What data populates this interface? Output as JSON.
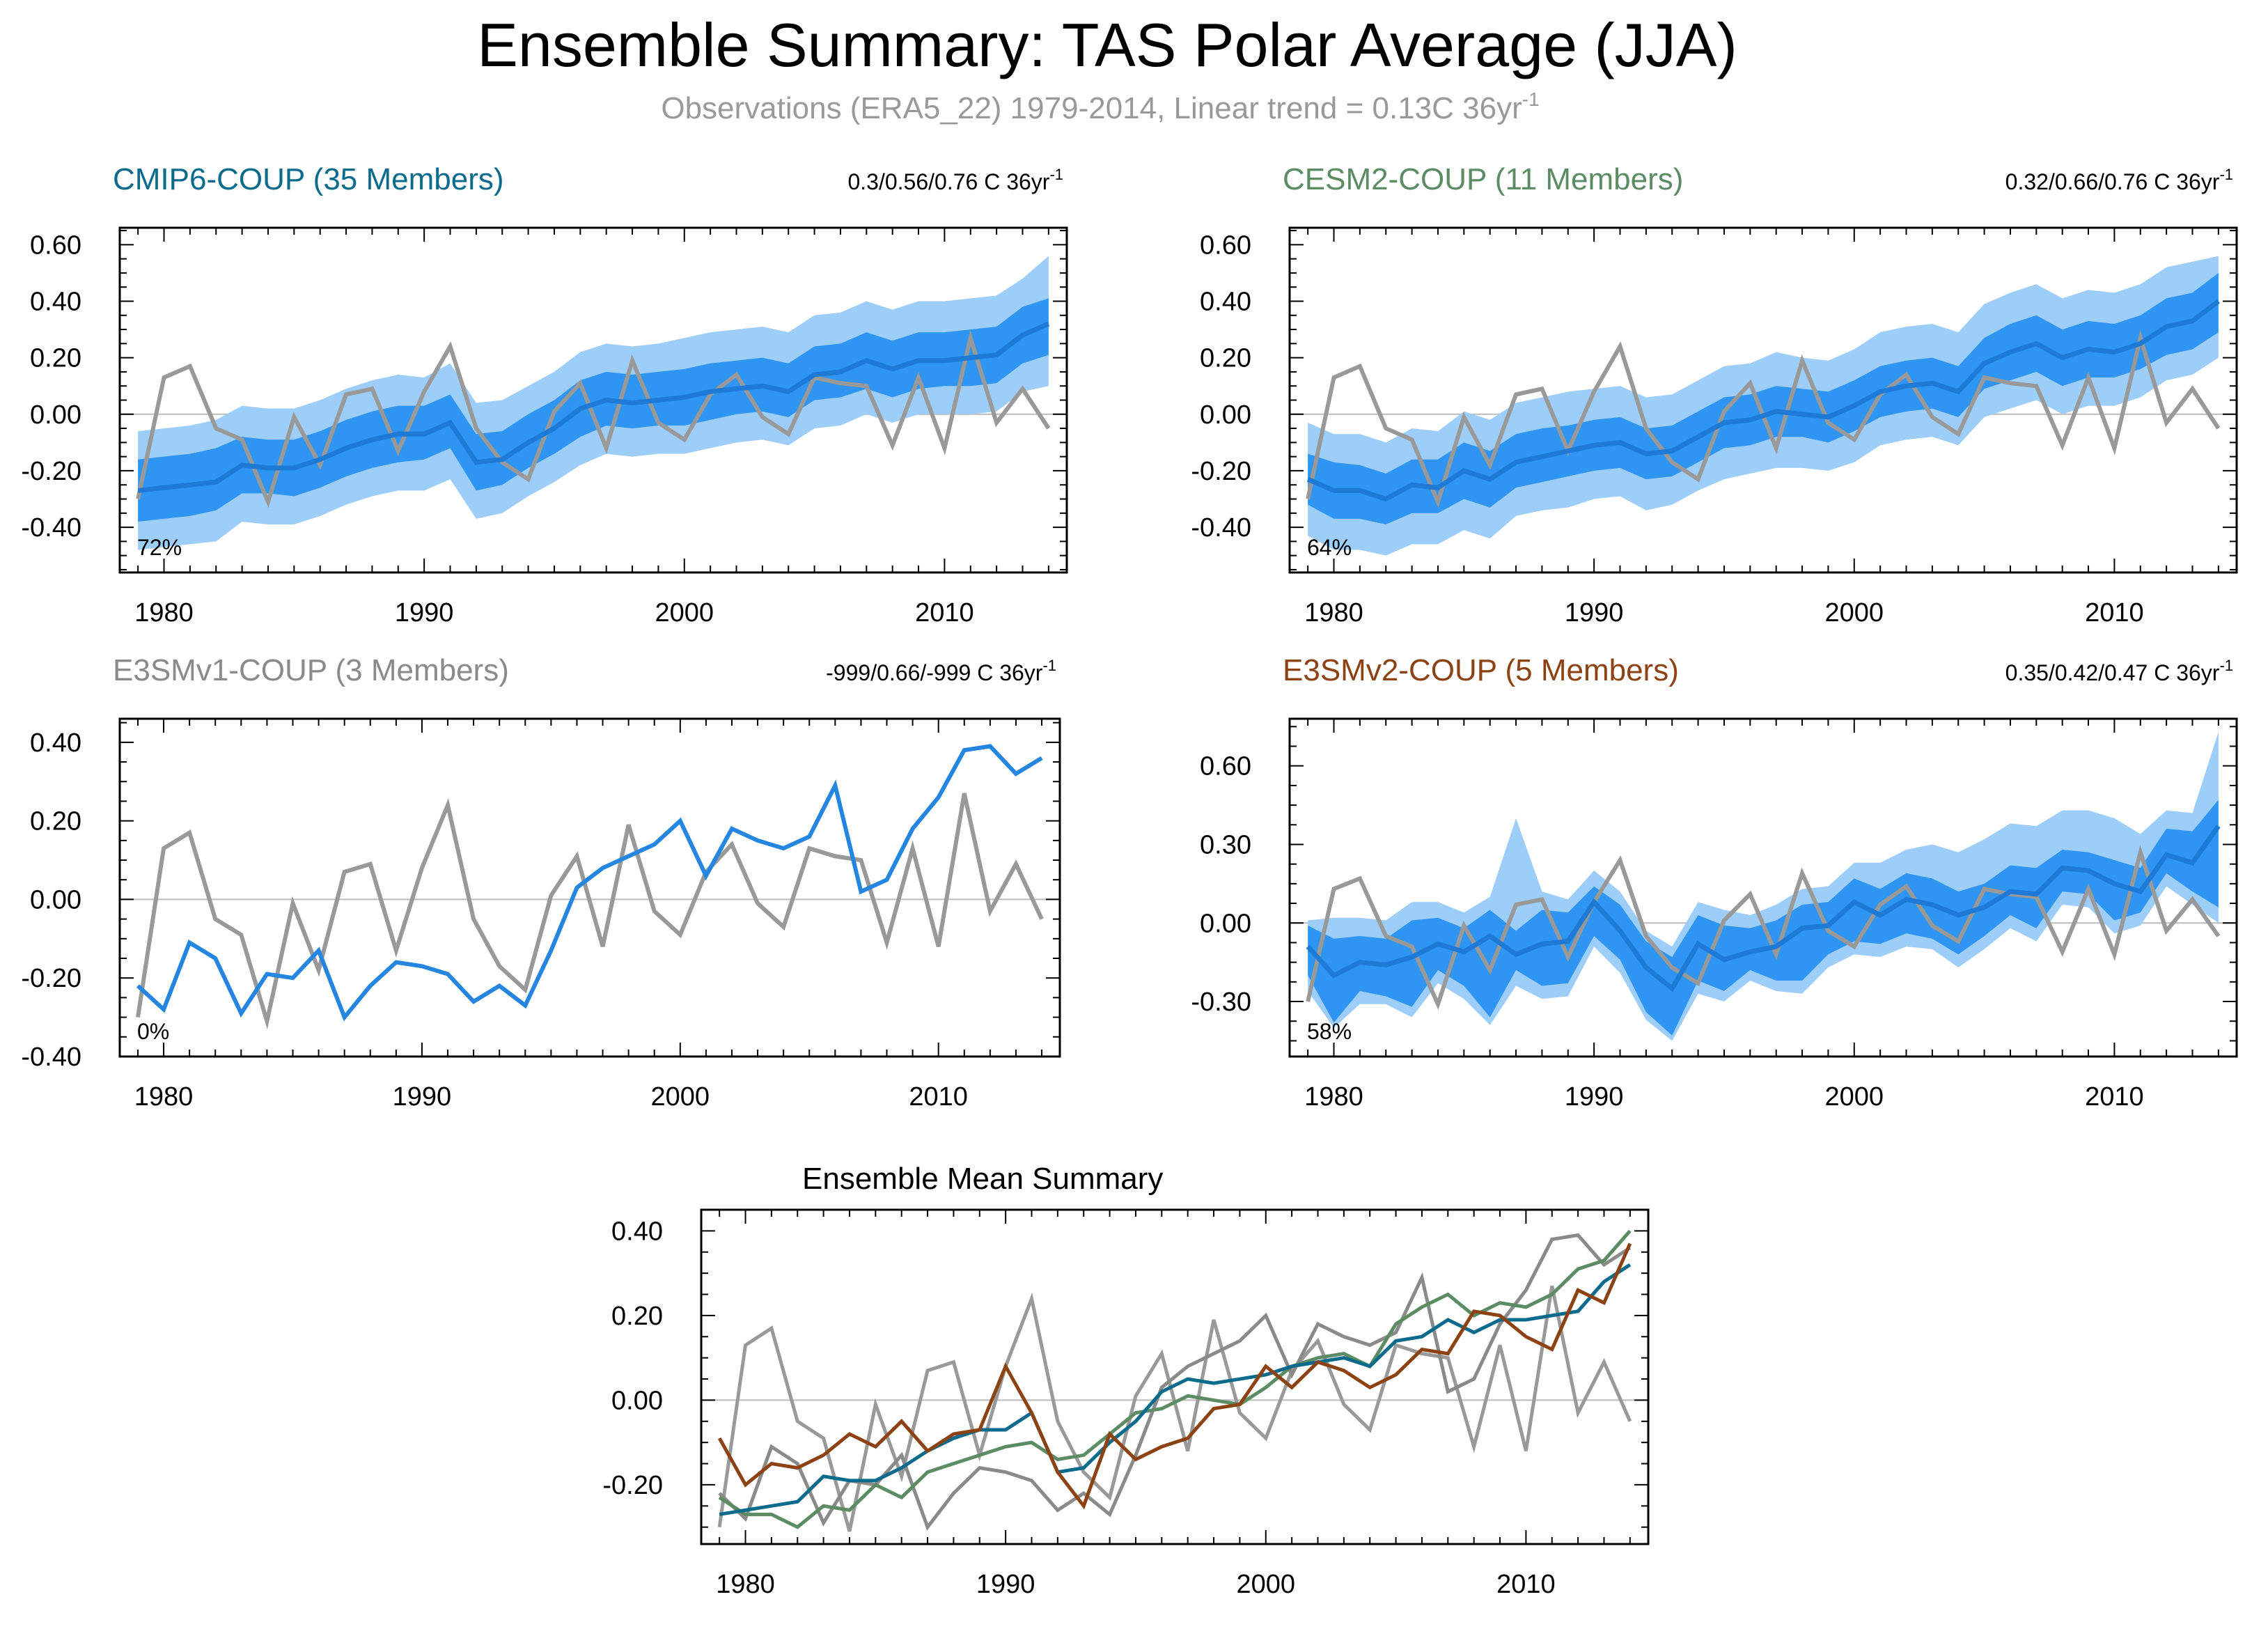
{
  "title": "Ensemble Summary: TAS Polar Average (JJA)",
  "subtitle": {
    "text": "Observations (ERA5_22) 1979-2014, Linear trend = 0.13C 36yr",
    "superscript": "-1"
  },
  "colors": {
    "obs": "#999999",
    "band_outer": "#9dcdf9",
    "band_inner": "#2e95f2",
    "mean_line": "#1d7bd7",
    "e3smv1_line": "#2486e1",
    "cmip6": "#0a6b8c",
    "cesm2": "#5b8c63",
    "e3smv1": "#8a8a8a",
    "e3smv2": "#8c4212"
  },
  "chart_data": [
    {
      "type": "line",
      "panel": "cmip6",
      "title": "CMIP6-COUP (35 Members)",
      "trend_text": "0.3/0.56/0.76 C 36yr",
      "trend_sup": "-1",
      "pct_label": "72%",
      "x_start": 1979,
      "xticks": [
        1980,
        1990,
        2000,
        2010
      ],
      "ylim": [
        -0.56,
        0.66
      ],
      "yticks": [
        -0.4,
        -0.2,
        0.0,
        0.2,
        0.4,
        0.6
      ],
      "ytick_labels": [
        "-0.40",
        "-0.20",
        "0.00",
        "0.20",
        "0.40",
        "0.60"
      ],
      "obs": [
        -0.3,
        0.13,
        0.17,
        -0.05,
        -0.09,
        -0.31,
        -0.01,
        -0.18,
        0.07,
        0.09,
        -0.13,
        0.08,
        0.24,
        -0.05,
        -0.17,
        -0.23,
        0.01,
        0.11,
        -0.12,
        0.19,
        -0.03,
        -0.09,
        0.07,
        0.14,
        -0.01,
        -0.07,
        0.13,
        0.11,
        0.1,
        -0.11,
        0.13,
        -0.12,
        0.27,
        -0.03,
        0.09,
        -0.05
      ],
      "mean": [
        -0.27,
        -0.26,
        -0.25,
        -0.24,
        -0.18,
        -0.19,
        -0.19,
        -0.16,
        -0.12,
        -0.09,
        -0.07,
        -0.07,
        -0.03,
        -0.17,
        -0.16,
        -0.1,
        -0.05,
        0.02,
        0.05,
        0.04,
        0.05,
        0.06,
        0.08,
        0.09,
        0.1,
        0.08,
        0.14,
        0.15,
        0.19,
        0.16,
        0.19,
        0.19,
        0.2,
        0.21,
        0.28,
        0.32
      ],
      "inner_low": [
        -0.38,
        -0.37,
        -0.36,
        -0.34,
        -0.28,
        -0.28,
        -0.29,
        -0.26,
        -0.22,
        -0.19,
        -0.17,
        -0.16,
        -0.12,
        -0.27,
        -0.25,
        -0.19,
        -0.14,
        -0.08,
        -0.04,
        -0.05,
        -0.04,
        -0.04,
        -0.02,
        0.0,
        0.01,
        -0.01,
        0.05,
        0.06,
        0.09,
        0.06,
        0.09,
        0.1,
        0.1,
        0.11,
        0.18,
        0.21
      ],
      "inner_high": [
        -0.16,
        -0.15,
        -0.14,
        -0.12,
        -0.08,
        -0.09,
        -0.09,
        -0.06,
        -0.02,
        0.01,
        0.03,
        0.03,
        0.07,
        -0.07,
        -0.06,
        0.0,
        0.05,
        0.12,
        0.15,
        0.14,
        0.15,
        0.16,
        0.18,
        0.19,
        0.2,
        0.18,
        0.24,
        0.25,
        0.29,
        0.26,
        0.29,
        0.29,
        0.3,
        0.31,
        0.38,
        0.41
      ],
      "outer_low": [
        -0.48,
        -0.47,
        -0.46,
        -0.45,
        -0.38,
        -0.39,
        -0.39,
        -0.36,
        -0.32,
        -0.29,
        -0.27,
        -0.27,
        -0.23,
        -0.37,
        -0.35,
        -0.29,
        -0.24,
        -0.18,
        -0.14,
        -0.15,
        -0.14,
        -0.14,
        -0.12,
        -0.1,
        -0.09,
        -0.11,
        -0.05,
        -0.04,
        0.0,
        -0.03,
        0.0,
        0.0,
        0.0,
        0.01,
        0.08,
        0.1
      ],
      "outer_high": [
        -0.06,
        -0.05,
        -0.04,
        -0.02,
        0.03,
        0.02,
        0.02,
        0.05,
        0.09,
        0.12,
        0.14,
        0.13,
        0.18,
        0.04,
        0.05,
        0.1,
        0.15,
        0.22,
        0.25,
        0.24,
        0.25,
        0.27,
        0.29,
        0.3,
        0.31,
        0.29,
        0.35,
        0.36,
        0.4,
        0.37,
        0.4,
        0.4,
        0.41,
        0.42,
        0.48,
        0.56
      ]
    },
    {
      "type": "line",
      "panel": "cesm2",
      "title": "CESM2-COUP (11 Members)",
      "trend_text": "0.32/0.66/0.76 C 36yr",
      "trend_sup": "-1",
      "pct_label": "64%",
      "x_start": 1979,
      "xticks": [
        1980,
        1990,
        2000,
        2010
      ],
      "ylim": [
        -0.56,
        0.66
      ],
      "yticks": [
        -0.4,
        -0.2,
        0.0,
        0.2,
        0.4,
        0.6
      ],
      "ytick_labels": [
        "-0.40",
        "-0.20",
        "0.00",
        "0.20",
        "0.40",
        "0.60"
      ],
      "obs": [
        -0.3,
        0.13,
        0.17,
        -0.05,
        -0.09,
        -0.31,
        -0.01,
        -0.18,
        0.07,
        0.09,
        -0.13,
        0.08,
        0.24,
        -0.05,
        -0.17,
        -0.23,
        0.01,
        0.11,
        -0.12,
        0.19,
        -0.03,
        -0.09,
        0.07,
        0.14,
        -0.01,
        -0.07,
        0.13,
        0.11,
        0.1,
        -0.11,
        0.13,
        -0.12,
        0.27,
        -0.03,
        0.09,
        -0.05
      ],
      "mean": [
        -0.23,
        -0.27,
        -0.27,
        -0.3,
        -0.25,
        -0.26,
        -0.2,
        -0.23,
        -0.17,
        -0.15,
        -0.13,
        -0.11,
        -0.1,
        -0.14,
        -0.13,
        -0.08,
        -0.03,
        -0.02,
        0.01,
        0.0,
        -0.01,
        0.03,
        0.08,
        0.1,
        0.11,
        0.08,
        0.18,
        0.22,
        0.25,
        0.2,
        0.23,
        0.22,
        0.25,
        0.31,
        0.33,
        0.4
      ],
      "inner_low": [
        -0.32,
        -0.37,
        -0.37,
        -0.39,
        -0.35,
        -0.35,
        -0.3,
        -0.33,
        -0.26,
        -0.24,
        -0.22,
        -0.2,
        -0.19,
        -0.23,
        -0.22,
        -0.17,
        -0.12,
        -0.11,
        -0.08,
        -0.08,
        -0.1,
        -0.06,
        -0.01,
        0.01,
        0.02,
        -0.01,
        0.09,
        0.12,
        0.15,
        0.1,
        0.13,
        0.13,
        0.16,
        0.21,
        0.23,
        0.29
      ],
      "inner_high": [
        -0.14,
        -0.17,
        -0.18,
        -0.21,
        -0.16,
        -0.16,
        -0.1,
        -0.13,
        -0.07,
        -0.05,
        -0.04,
        -0.02,
        -0.01,
        -0.05,
        -0.04,
        0.01,
        0.06,
        0.07,
        0.1,
        0.09,
        0.08,
        0.12,
        0.17,
        0.19,
        0.2,
        0.17,
        0.27,
        0.32,
        0.35,
        0.3,
        0.33,
        0.32,
        0.35,
        0.41,
        0.43,
        0.5
      ],
      "outer_low": [
        -0.43,
        -0.48,
        -0.48,
        -0.5,
        -0.46,
        -0.46,
        -0.41,
        -0.44,
        -0.36,
        -0.34,
        -0.33,
        -0.3,
        -0.29,
        -0.34,
        -0.32,
        -0.27,
        -0.23,
        -0.21,
        -0.19,
        -0.19,
        -0.2,
        -0.17,
        -0.11,
        -0.09,
        -0.08,
        -0.11,
        -0.01,
        0.02,
        0.05,
        0.0,
        0.03,
        0.03,
        0.06,
        0.12,
        0.14,
        0.2
      ],
      "outer_high": [
        -0.03,
        -0.07,
        -0.07,
        -0.1,
        -0.05,
        -0.06,
        0.01,
        -0.02,
        0.04,
        0.06,
        0.08,
        0.09,
        0.1,
        0.06,
        0.07,
        0.12,
        0.17,
        0.18,
        0.22,
        0.2,
        0.19,
        0.23,
        0.29,
        0.31,
        0.32,
        0.29,
        0.39,
        0.43,
        0.46,
        0.41,
        0.44,
        0.43,
        0.46,
        0.52,
        0.54,
        0.56
      ]
    },
    {
      "type": "line",
      "panel": "e3smv1",
      "title": "E3SMv1-COUP (3 Members)",
      "trend_text": "-999/0.66/-999 C 36yr",
      "trend_sup": "-1",
      "pct_label": "0%",
      "x_start": 1979,
      "xticks": [
        1980,
        1990,
        2000,
        2010
      ],
      "ylim": [
        -0.4,
        0.46
      ],
      "yticks": [
        -0.4,
        -0.2,
        0.0,
        0.2,
        0.4
      ],
      "ytick_labels": [
        "-0.40",
        "-0.20",
        "0.00",
        "0.20",
        "0.40"
      ],
      "obs": [
        -0.3,
        0.13,
        0.17,
        -0.05,
        -0.09,
        -0.31,
        -0.01,
        -0.18,
        0.07,
        0.09,
        -0.13,
        0.08,
        0.24,
        -0.05,
        -0.17,
        -0.23,
        0.01,
        0.11,
        -0.12,
        0.19,
        -0.03,
        -0.09,
        0.07,
        0.14,
        -0.01,
        -0.07,
        0.13,
        0.11,
        0.1,
        -0.11,
        0.13,
        -0.12,
        0.27,
        -0.03,
        0.09,
        -0.05
      ],
      "mean": [
        -0.22,
        -0.28,
        -0.11,
        -0.15,
        -0.29,
        -0.19,
        -0.2,
        -0.13,
        -0.3,
        -0.22,
        -0.16,
        -0.17,
        -0.19,
        -0.26,
        -0.22,
        -0.27,
        -0.13,
        0.03,
        0.08,
        0.11,
        0.14,
        0.2,
        0.06,
        0.18,
        0.15,
        0.13,
        0.16,
        0.29,
        0.02,
        0.05,
        0.18,
        0.26,
        0.38,
        0.39,
        0.32,
        0.36
      ]
    },
    {
      "type": "line",
      "panel": "e3smv2",
      "title": "E3SMv2-COUP (5 Members)",
      "trend_text": "0.35/0.42/0.47 C 36yr",
      "trend_sup": "-1",
      "pct_label": "58%",
      "x_start": 1979,
      "xticks": [
        1980,
        1990,
        2000,
        2010
      ],
      "ylim": [
        -0.51,
        0.78
      ],
      "yticks": [
        -0.3,
        0.0,
        0.3,
        0.6
      ],
      "ytick_labels": [
        "-0.30",
        "0.00",
        "0.30",
        "0.60"
      ],
      "obs": [
        -0.3,
        0.13,
        0.17,
        -0.05,
        -0.09,
        -0.31,
        -0.01,
        -0.18,
        0.07,
        0.09,
        -0.13,
        0.08,
        0.24,
        -0.05,
        -0.17,
        -0.23,
        0.01,
        0.11,
        -0.12,
        0.19,
        -0.03,
        -0.09,
        0.07,
        0.14,
        -0.01,
        -0.07,
        0.13,
        0.11,
        0.1,
        -0.11,
        0.13,
        -0.12,
        0.27,
        -0.03,
        0.09,
        -0.05
      ],
      "mean": [
        -0.09,
        -0.2,
        -0.15,
        -0.16,
        -0.13,
        -0.08,
        -0.11,
        -0.05,
        -0.12,
        -0.08,
        -0.07,
        0.08,
        -0.03,
        -0.17,
        -0.25,
        -0.08,
        -0.14,
        -0.11,
        -0.09,
        -0.02,
        -0.01,
        0.08,
        0.03,
        0.09,
        0.07,
        0.03,
        0.06,
        0.12,
        0.11,
        0.21,
        0.2,
        0.15,
        0.12,
        0.26,
        0.23,
        0.37
      ],
      "inner_low": [
        -0.2,
        -0.38,
        -0.26,
        -0.28,
        -0.32,
        -0.18,
        -0.24,
        -0.36,
        -0.18,
        -0.24,
        -0.23,
        -0.05,
        -0.14,
        -0.34,
        -0.43,
        -0.22,
        -0.26,
        -0.18,
        -0.22,
        -0.22,
        -0.12,
        -0.07,
        -0.08,
        -0.04,
        -0.06,
        -0.12,
        -0.05,
        0.03,
        -0.02,
        0.12,
        0.11,
        0.01,
        0.04,
        0.19,
        0.12,
        0.06
      ],
      "inner_high": [
        -0.01,
        -0.06,
        -0.05,
        -0.06,
        0.01,
        0.02,
        -0.02,
        0.05,
        -0.03,
        0.05,
        0.04,
        0.14,
        0.07,
        -0.07,
        -0.13,
        0.03,
        -0.01,
        -0.02,
        0.01,
        0.07,
        0.08,
        0.17,
        0.13,
        0.19,
        0.17,
        0.12,
        0.15,
        0.22,
        0.21,
        0.28,
        0.27,
        0.24,
        0.21,
        0.36,
        0.35,
        0.47
      ],
      "outer_low": [
        -0.26,
        -0.4,
        -0.31,
        -0.31,
        -0.36,
        -0.23,
        -0.29,
        -0.39,
        -0.24,
        -0.29,
        -0.28,
        -0.09,
        -0.19,
        -0.37,
        -0.45,
        -0.27,
        -0.3,
        -0.22,
        -0.26,
        -0.27,
        -0.17,
        -0.12,
        -0.13,
        -0.09,
        -0.1,
        -0.17,
        -0.1,
        -0.02,
        -0.07,
        0.07,
        0.06,
        -0.04,
        -0.01,
        0.14,
        0.07,
        0.0
      ],
      "outer_high": [
        0.01,
        0.02,
        0.02,
        0.01,
        0.08,
        0.08,
        0.04,
        0.1,
        0.4,
        0.12,
        0.09,
        0.2,
        0.12,
        -0.03,
        -0.09,
        0.08,
        0.05,
        0.03,
        0.07,
        0.13,
        0.14,
        0.23,
        0.23,
        0.28,
        0.3,
        0.27,
        0.32,
        0.38,
        0.37,
        0.43,
        0.43,
        0.4,
        0.34,
        0.43,
        0.42,
        0.73
      ]
    },
    {
      "type": "line",
      "panel": "mean",
      "title": "Ensemble Mean Summary",
      "x_start": 1979,
      "xticks": [
        1980,
        1990,
        2000,
        2010
      ],
      "ylim": [
        -0.34,
        0.45
      ],
      "yticks": [
        -0.2,
        0.0,
        0.2,
        0.4
      ],
      "ytick_labels": [
        "-0.20",
        "0.00",
        "0.20",
        "0.40"
      ],
      "series": [
        {
          "color_key": "obs",
          "values": [
            -0.3,
            0.13,
            0.17,
            -0.05,
            -0.09,
            -0.31,
            -0.01,
            -0.18,
            0.07,
            0.09,
            -0.13,
            0.08,
            0.24,
            -0.05,
            -0.17,
            -0.23,
            0.01,
            0.11,
            -0.12,
            0.19,
            -0.03,
            -0.09,
            0.07,
            0.14,
            -0.01,
            -0.07,
            0.13,
            0.11,
            0.1,
            -0.11,
            0.13,
            -0.12,
            0.27,
            -0.03,
            0.09,
            -0.05
          ]
        },
        {
          "color_key": "e3smv1",
          "values": [
            -0.22,
            -0.28,
            -0.11,
            -0.15,
            -0.29,
            -0.19,
            -0.2,
            -0.13,
            -0.3,
            -0.22,
            -0.16,
            -0.17,
            -0.19,
            -0.26,
            -0.22,
            -0.27,
            -0.13,
            0.03,
            0.08,
            0.11,
            0.14,
            0.2,
            0.06,
            0.18,
            0.15,
            0.13,
            0.16,
            0.29,
            0.02,
            0.05,
            0.18,
            0.26,
            0.38,
            0.39,
            0.32,
            0.36
          ]
        },
        {
          "color_key": "cesm2",
          "values": [
            -0.23,
            -0.27,
            -0.27,
            -0.3,
            -0.25,
            -0.26,
            -0.2,
            -0.23,
            -0.17,
            -0.15,
            -0.13,
            -0.11,
            -0.1,
            -0.14,
            -0.13,
            -0.08,
            -0.03,
            -0.02,
            0.01,
            0.0,
            -0.01,
            0.03,
            0.08,
            0.1,
            0.11,
            0.08,
            0.18,
            0.22,
            0.25,
            0.2,
            0.23,
            0.22,
            0.25,
            0.31,
            0.33,
            0.4
          ]
        },
        {
          "color_key": "cmip6",
          "values": [
            -0.27,
            -0.26,
            -0.25,
            -0.24,
            -0.18,
            -0.19,
            -0.19,
            -0.16,
            -0.12,
            -0.09,
            -0.07,
            -0.07,
            -0.03,
            -0.17,
            -0.16,
            -0.1,
            -0.05,
            0.02,
            0.05,
            0.04,
            0.05,
            0.06,
            0.08,
            0.09,
            0.1,
            0.08,
            0.14,
            0.15,
            0.19,
            0.16,
            0.19,
            0.19,
            0.2,
            0.21,
            0.28,
            0.32
          ]
        },
        {
          "color_key": "e3smv2",
          "values": [
            -0.09,
            -0.2,
            -0.15,
            -0.16,
            -0.13,
            -0.08,
            -0.11,
            -0.05,
            -0.12,
            -0.08,
            -0.07,
            0.08,
            -0.03,
            -0.17,
            -0.25,
            -0.08,
            -0.14,
            -0.11,
            -0.09,
            -0.02,
            -0.01,
            0.08,
            0.03,
            0.09,
            0.07,
            0.03,
            0.06,
            0.12,
            0.11,
            0.21,
            0.2,
            0.15,
            0.12,
            0.26,
            0.23,
            0.37
          ]
        }
      ]
    }
  ]
}
